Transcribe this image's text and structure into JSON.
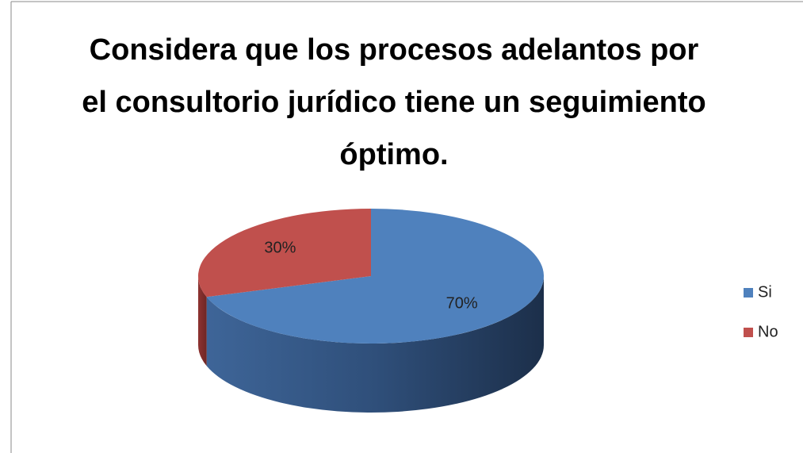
{
  "chart_data": {
    "type": "pie3d",
    "title": "Considera que los procesos adelantos por el consultorio jurídico tiene un seguimiento óptimo.",
    "categories": [
      "Si",
      "No"
    ],
    "values": [
      70,
      30
    ],
    "value_labels": [
      "70%",
      "30%"
    ],
    "colors": [
      "#4f81bd",
      "#c0504d"
    ],
    "legend": "right"
  }
}
